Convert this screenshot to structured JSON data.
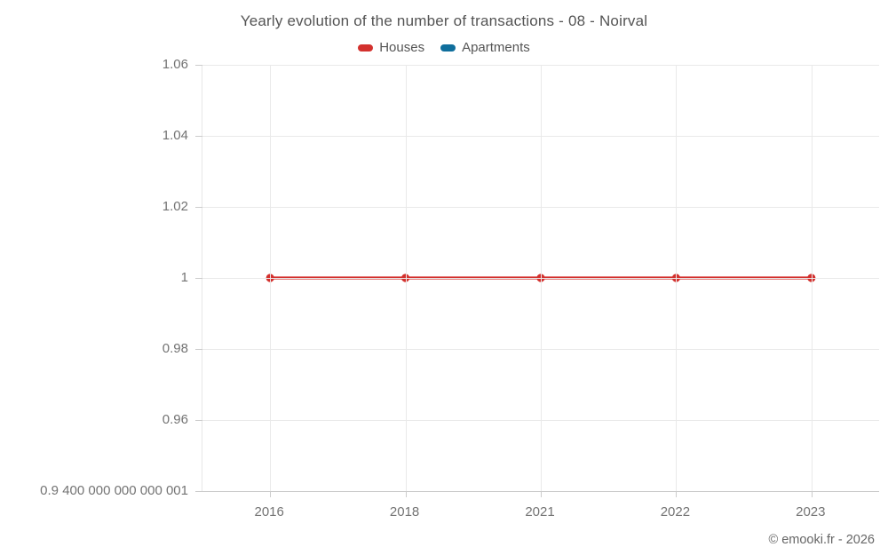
{
  "title": "Yearly evolution of the number of transactions - 08 - Noirval",
  "copyright": "© emooki.fr - 2026",
  "legend": {
    "items": [
      {
        "label": "Houses",
        "color": "#d3312e"
      },
      {
        "label": "Apartments",
        "color": "#0f6e9c"
      }
    ]
  },
  "chart_data": {
    "type": "line",
    "title": "Yearly evolution of the number of transactions - 08 - Noirval",
    "categories": [
      "2016",
      "2018",
      "2021",
      "2022",
      "2023"
    ],
    "series": [
      {
        "name": "Houses",
        "color": "#d3312e",
        "values": [
          1,
          1,
          1,
          1,
          1
        ]
      },
      {
        "name": "Apartments",
        "color": "#0f6e9c",
        "values": []
      }
    ],
    "y_ticks": [
      {
        "value": 1.06,
        "label": "1.06"
      },
      {
        "value": 1.04,
        "label": "1.04"
      },
      {
        "value": 1.02,
        "label": "1.02"
      },
      {
        "value": 1,
        "label": "1"
      },
      {
        "value": 0.98,
        "label": "0.98"
      },
      {
        "value": 0.96,
        "label": "0.96"
      },
      {
        "value": 0.94,
        "label": "0.9 400 000 000 000 001"
      }
    ],
    "ylim": [
      0.94,
      1.06
    ],
    "xlabel": "",
    "ylabel": "",
    "grid": true,
    "legend_position": "top"
  }
}
